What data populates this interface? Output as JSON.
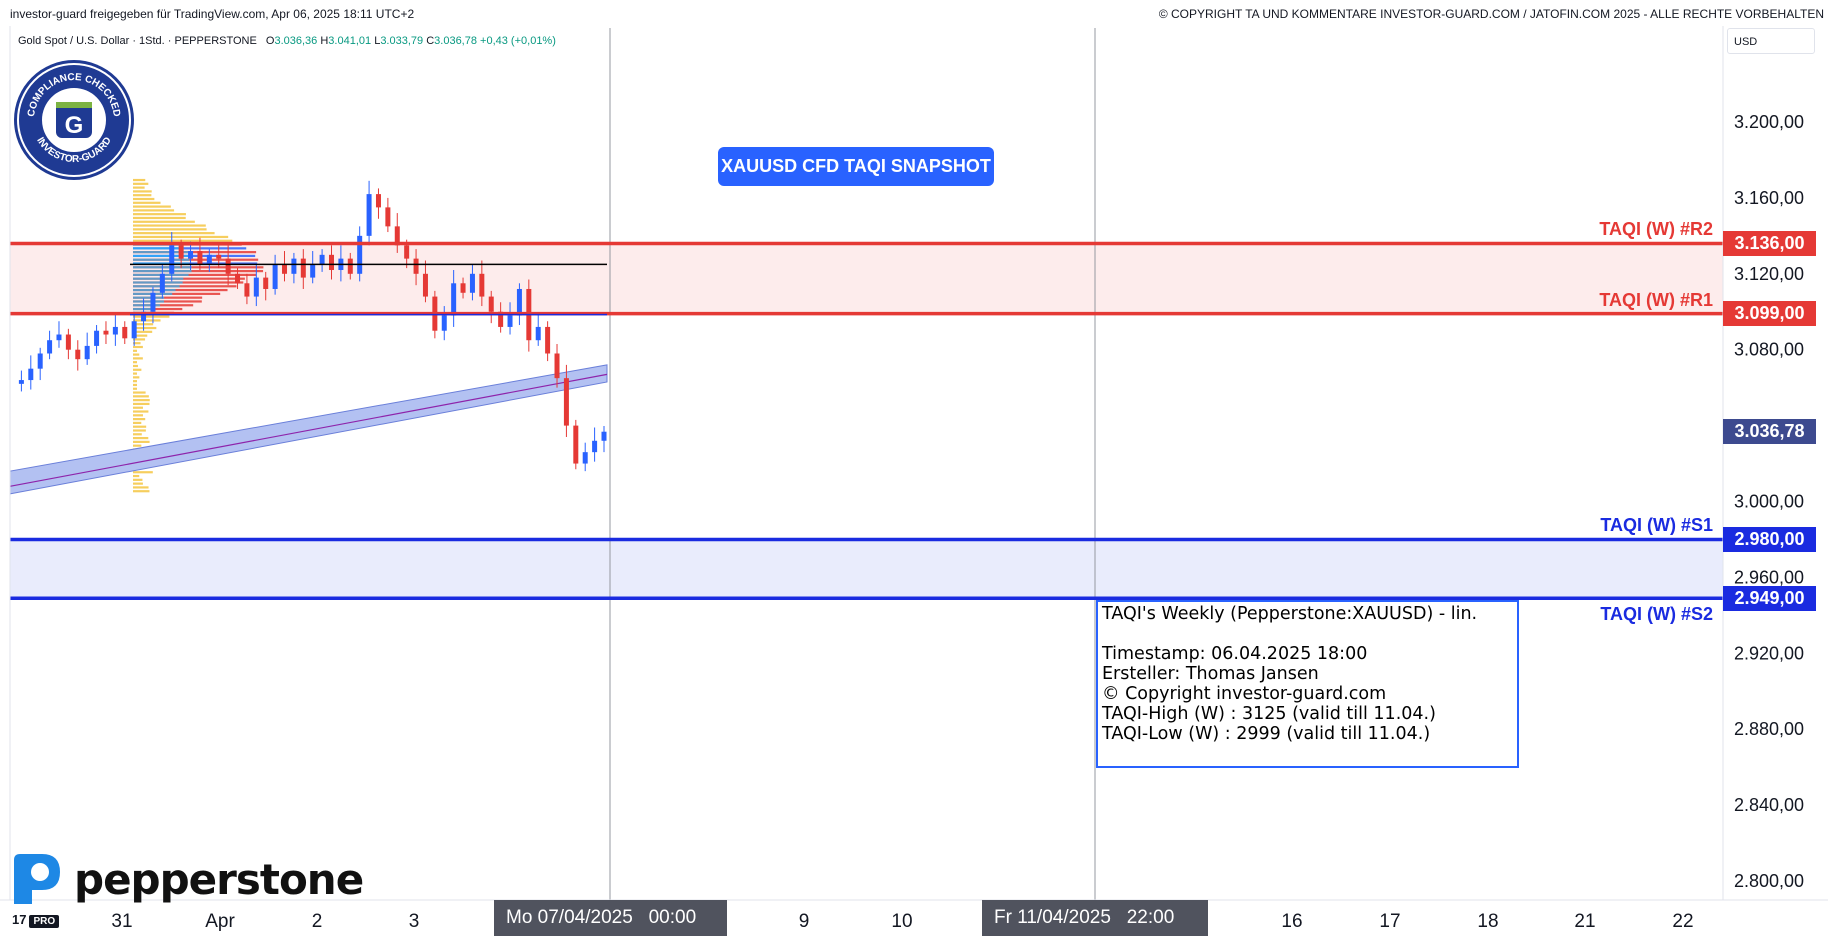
{
  "header": {
    "left_text": "investor-guard freigegeben für TradingView.com, Apr 06, 2025 18:11 UTC+2",
    "right_text": "© COPYRIGHT TA UND KOMMENTARE INVESTOR-GUARD.COM / JATOFIN.COM 2025 - ALLE RECHTE VORBEHALTEN"
  },
  "legend": {
    "symbol": "Gold Spot / U.S. Dollar · 1Std. · PEPPERSTONE",
    "open_label": "O",
    "open": "3.036,36",
    "high_label": "H",
    "high": "3.041,01",
    "low_label": "L",
    "low": "3.033,79",
    "close_label": "C",
    "close": "3.036,78",
    "change": "+0,43 (+0,01%)"
  },
  "badge": {
    "top_text": "COMPLIANCE CHECKED",
    "bottom_text": "INVESTOR-GUARD",
    "letter": "G"
  },
  "snapshot_label": "XAUUSD CFD TAQI SNAPSHOT",
  "info_box": {
    "title": "TAQI's Weekly (Pepperstone:XAUUSD) - lin.",
    "timestamp": "Timestamp: 06.04.2025 18:00",
    "author": "Ersteller: Thomas Jansen",
    "copyright": "© Copyright investor-guard.com",
    "high": "TAQI-High (W) : 3125 (valid till 11.04.)",
    "low": "TAQI-Low (W) : 2999 (valid till 11.04.)"
  },
  "logo_text": "pepperstone",
  "tv_logo": "17",
  "tv_pro": "PRO",
  "currency_label": "USD",
  "levels": {
    "r2": {
      "label": "TAQI (W) #R2",
      "value": 3136.0,
      "price_label": "3.136,00",
      "color": "#e53935"
    },
    "r1": {
      "label": "TAQI (W) #R1",
      "value": 3099.0,
      "price_label": "3.099,00",
      "color": "#e53935"
    },
    "s1": {
      "label": "TAQI (W) #S1",
      "value": 2980.0,
      "price_label": "2.980,00",
      "color": "#1a2be0"
    },
    "s2": {
      "label": "TAQI (W) #S2",
      "value": 2949.0,
      "price_label": "2.949,00",
      "color": "#1a2be0"
    }
  },
  "current_price": {
    "value": 3036.78,
    "price_label": "3.036,78",
    "color": "#3d4a8f"
  },
  "date_boxes": {
    "left": "Mo 07/04/2025   00:00",
    "right": "Fr 11/04/2025   22:00"
  },
  "chart_data": {
    "type": "line",
    "y_axis": {
      "ylim": [
        2790,
        3230
      ],
      "ticks": [
        3200,
        3160,
        3120,
        3080,
        3000,
        2960,
        2920,
        2880,
        2840,
        2800
      ],
      "tick_labels": [
        "3.200,00",
        "3.160,00",
        "3.120,00",
        "3.080,00",
        "3.000,00",
        "2.960,00",
        "2.920,00",
        "2.880,00",
        "2.840,00",
        "2.800,00"
      ]
    },
    "x_tick_labels": [
      "31",
      "Apr",
      "2",
      "3",
      "9",
      "10",
      "16",
      "17",
      "18",
      "21",
      "22"
    ],
    "price_series": {
      "name": "XAUUSD 1h",
      "values": [
        3062,
        3064,
        3070,
        3078,
        3085,
        3088,
        3080,
        3075,
        3082,
        3090,
        3088,
        3092,
        3086,
        3095,
        3100,
        3110,
        3120,
        3135,
        3128,
        3132,
        3125,
        3130,
        3128,
        3120,
        3115,
        3108,
        3118,
        3112,
        3125,
        3120,
        3128,
        3118,
        3125,
        3130,
        3122,
        3128,
        3120,
        3140,
        3162,
        3155,
        3145,
        3135,
        3128,
        3120,
        3108,
        3090,
        3098,
        3115,
        3110,
        3120,
        3108,
        3100,
        3092,
        3098,
        3112,
        3085,
        3092,
        3078,
        3065,
        3040,
        3020,
        3026,
        3032,
        3036.78
      ]
    },
    "ma_band": {
      "name": "Moving average band",
      "start": [
        3004,
        3016
      ],
      "end": [
        3063,
        3072
      ]
    },
    "poc": 3125,
    "value_area": [
      3136,
      3099
    ]
  }
}
